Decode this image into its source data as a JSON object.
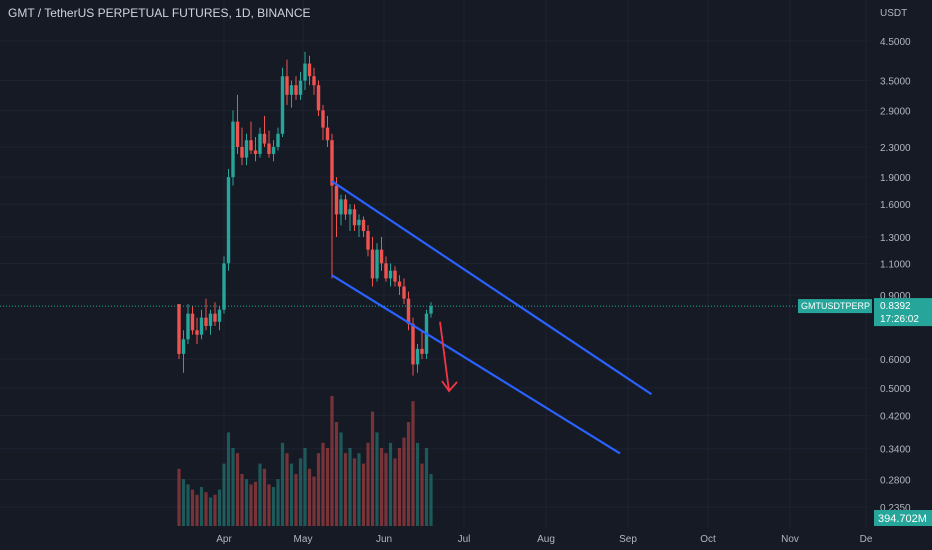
{
  "header": {
    "title": "GMT / TetherUS PERPETUAL FUTURES, 1D, BINANCE"
  },
  "colors": {
    "background": "#161a25",
    "up": "#26a69a",
    "down": "#ef5350",
    "channel": "#2962ff",
    "arrow": "#f23645",
    "badge": "#26a69a"
  },
  "chart_data": {
    "type": "candlestick",
    "title": "GMT / TetherUS PERPETUAL FUTURES, 1D, BINANCE",
    "y_axis": {
      "unit": "USDT",
      "scale": "log",
      "ticks": [
        "4.5000",
        "3.5000",
        "2.9000",
        "2.3000",
        "1.9000",
        "1.6000",
        "1.3000",
        "1.1000",
        "0.9000",
        "0.6000",
        "0.5000",
        "0.4200",
        "0.3400",
        "0.2800",
        "0.2350"
      ],
      "ylim": [
        0.22,
        5.0
      ]
    },
    "x_axis": {
      "ticks": [
        "Apr",
        "May",
        "Jun",
        "Jul",
        "Aug",
        "Sep",
        "Oct",
        "Nov",
        "De"
      ]
    },
    "last_price": {
      "symbol": "GMTUSDTPERP",
      "price": "0.8392",
      "countdown": "17:26:02",
      "value": 0.8392
    },
    "volume_label": "394.702M",
    "candles": [
      [
        0.85,
        0.85,
        0.6,
        0.62
      ],
      [
        0.62,
        0.72,
        0.55,
        0.68
      ],
      [
        0.68,
        0.85,
        0.66,
        0.8
      ],
      [
        0.8,
        0.84,
        0.7,
        0.72
      ],
      [
        0.72,
        0.78,
        0.66,
        0.7
      ],
      [
        0.7,
        0.82,
        0.68,
        0.78
      ],
      [
        0.78,
        0.88,
        0.72,
        0.74
      ],
      [
        0.74,
        0.82,
        0.7,
        0.8
      ],
      [
        0.8,
        0.86,
        0.74,
        0.76
      ],
      [
        0.76,
        0.84,
        0.72,
        0.82
      ],
      [
        0.82,
        1.15,
        0.8,
        1.1
      ],
      [
        1.1,
        2.0,
        1.05,
        1.9
      ],
      [
        1.9,
        2.9,
        1.8,
        2.7
      ],
      [
        2.7,
        3.2,
        2.2,
        2.3
      ],
      [
        2.3,
        2.6,
        2.05,
        2.15
      ],
      [
        2.15,
        2.5,
        2.05,
        2.4
      ],
      [
        2.4,
        2.7,
        2.2,
        2.25
      ],
      [
        2.25,
        2.45,
        2.1,
        2.2
      ],
      [
        2.2,
        2.6,
        2.15,
        2.5
      ],
      [
        2.5,
        2.8,
        2.3,
        2.35
      ],
      [
        2.35,
        2.55,
        2.15,
        2.2
      ],
      [
        2.2,
        2.4,
        2.1,
        2.3
      ],
      [
        2.3,
        2.6,
        2.25,
        2.5
      ],
      [
        2.5,
        3.8,
        2.45,
        3.6
      ],
      [
        3.6,
        4.0,
        3.0,
        3.2
      ],
      [
        3.2,
        3.5,
        2.95,
        3.4
      ],
      [
        3.4,
        3.6,
        3.1,
        3.2
      ],
      [
        3.2,
        3.7,
        3.1,
        3.5
      ],
      [
        3.5,
        4.2,
        3.3,
        3.9
      ],
      [
        3.9,
        4.1,
        3.4,
        3.6
      ],
      [
        3.6,
        3.8,
        3.2,
        3.4
      ],
      [
        3.4,
        3.5,
        2.8,
        2.9
      ],
      [
        2.9,
        3.0,
        2.4,
        2.6
      ],
      [
        2.6,
        2.8,
        2.3,
        2.4
      ],
      [
        2.4,
        2.5,
        1.0,
        1.8
      ],
      [
        1.8,
        1.9,
        1.3,
        1.5
      ],
      [
        1.5,
        1.7,
        1.4,
        1.65
      ],
      [
        1.65,
        1.7,
        1.45,
        1.5
      ],
      [
        1.5,
        1.6,
        1.35,
        1.55
      ],
      [
        1.55,
        1.6,
        1.35,
        1.4
      ],
      [
        1.4,
        1.5,
        1.3,
        1.45
      ],
      [
        1.45,
        1.48,
        1.3,
        1.35
      ],
      [
        1.35,
        1.4,
        1.15,
        1.2
      ],
      [
        1.2,
        1.3,
        0.95,
        1.0
      ],
      [
        1.0,
        1.25,
        0.98,
        1.2
      ],
      [
        1.2,
        1.3,
        1.05,
        1.1
      ],
      [
        1.1,
        1.15,
        0.98,
        1.0
      ],
      [
        1.0,
        1.1,
        0.95,
        1.05
      ],
      [
        1.05,
        1.08,
        0.95,
        0.98
      ],
      [
        0.98,
        1.02,
        0.9,
        0.95
      ],
      [
        0.95,
        1.0,
        0.85,
        0.88
      ],
      [
        0.88,
        0.92,
        0.72,
        0.75
      ],
      [
        0.75,
        0.78,
        0.54,
        0.58
      ],
      [
        0.58,
        0.66,
        0.55,
        0.64
      ],
      [
        0.64,
        0.72,
        0.6,
        0.62
      ],
      [
        0.62,
        0.82,
        0.6,
        0.8
      ],
      [
        0.8,
        0.86,
        0.78,
        0.8392
      ]
    ],
    "volumes": [
      110,
      90,
      80,
      70,
      60,
      75,
      65,
      55,
      60,
      70,
      120,
      180,
      150,
      140,
      100,
      90,
      80,
      85,
      120,
      110,
      80,
      75,
      90,
      160,
      140,
      120,
      100,
      130,
      150,
      110,
      95,
      140,
      160,
      150,
      250,
      200,
      180,
      140,
      150,
      130,
      140,
      120,
      160,
      220,
      180,
      150,
      140,
      160,
      130,
      150,
      170,
      200,
      240,
      160,
      120,
      150,
      100
    ],
    "channel": {
      "upper": {
        "from": {
          "index": 34,
          "price": 1.85
        },
        "to": {
          "index": 105,
          "price": 0.48
        }
      },
      "lower": {
        "from": {
          "index": 34,
          "price": 1.02
        },
        "to": {
          "index": 98,
          "price": 0.33
        }
      }
    },
    "arrow": {
      "from": {
        "index": 58,
        "price": 0.76
      },
      "to": {
        "index": 60,
        "price": 0.49
      }
    },
    "grid": true
  }
}
